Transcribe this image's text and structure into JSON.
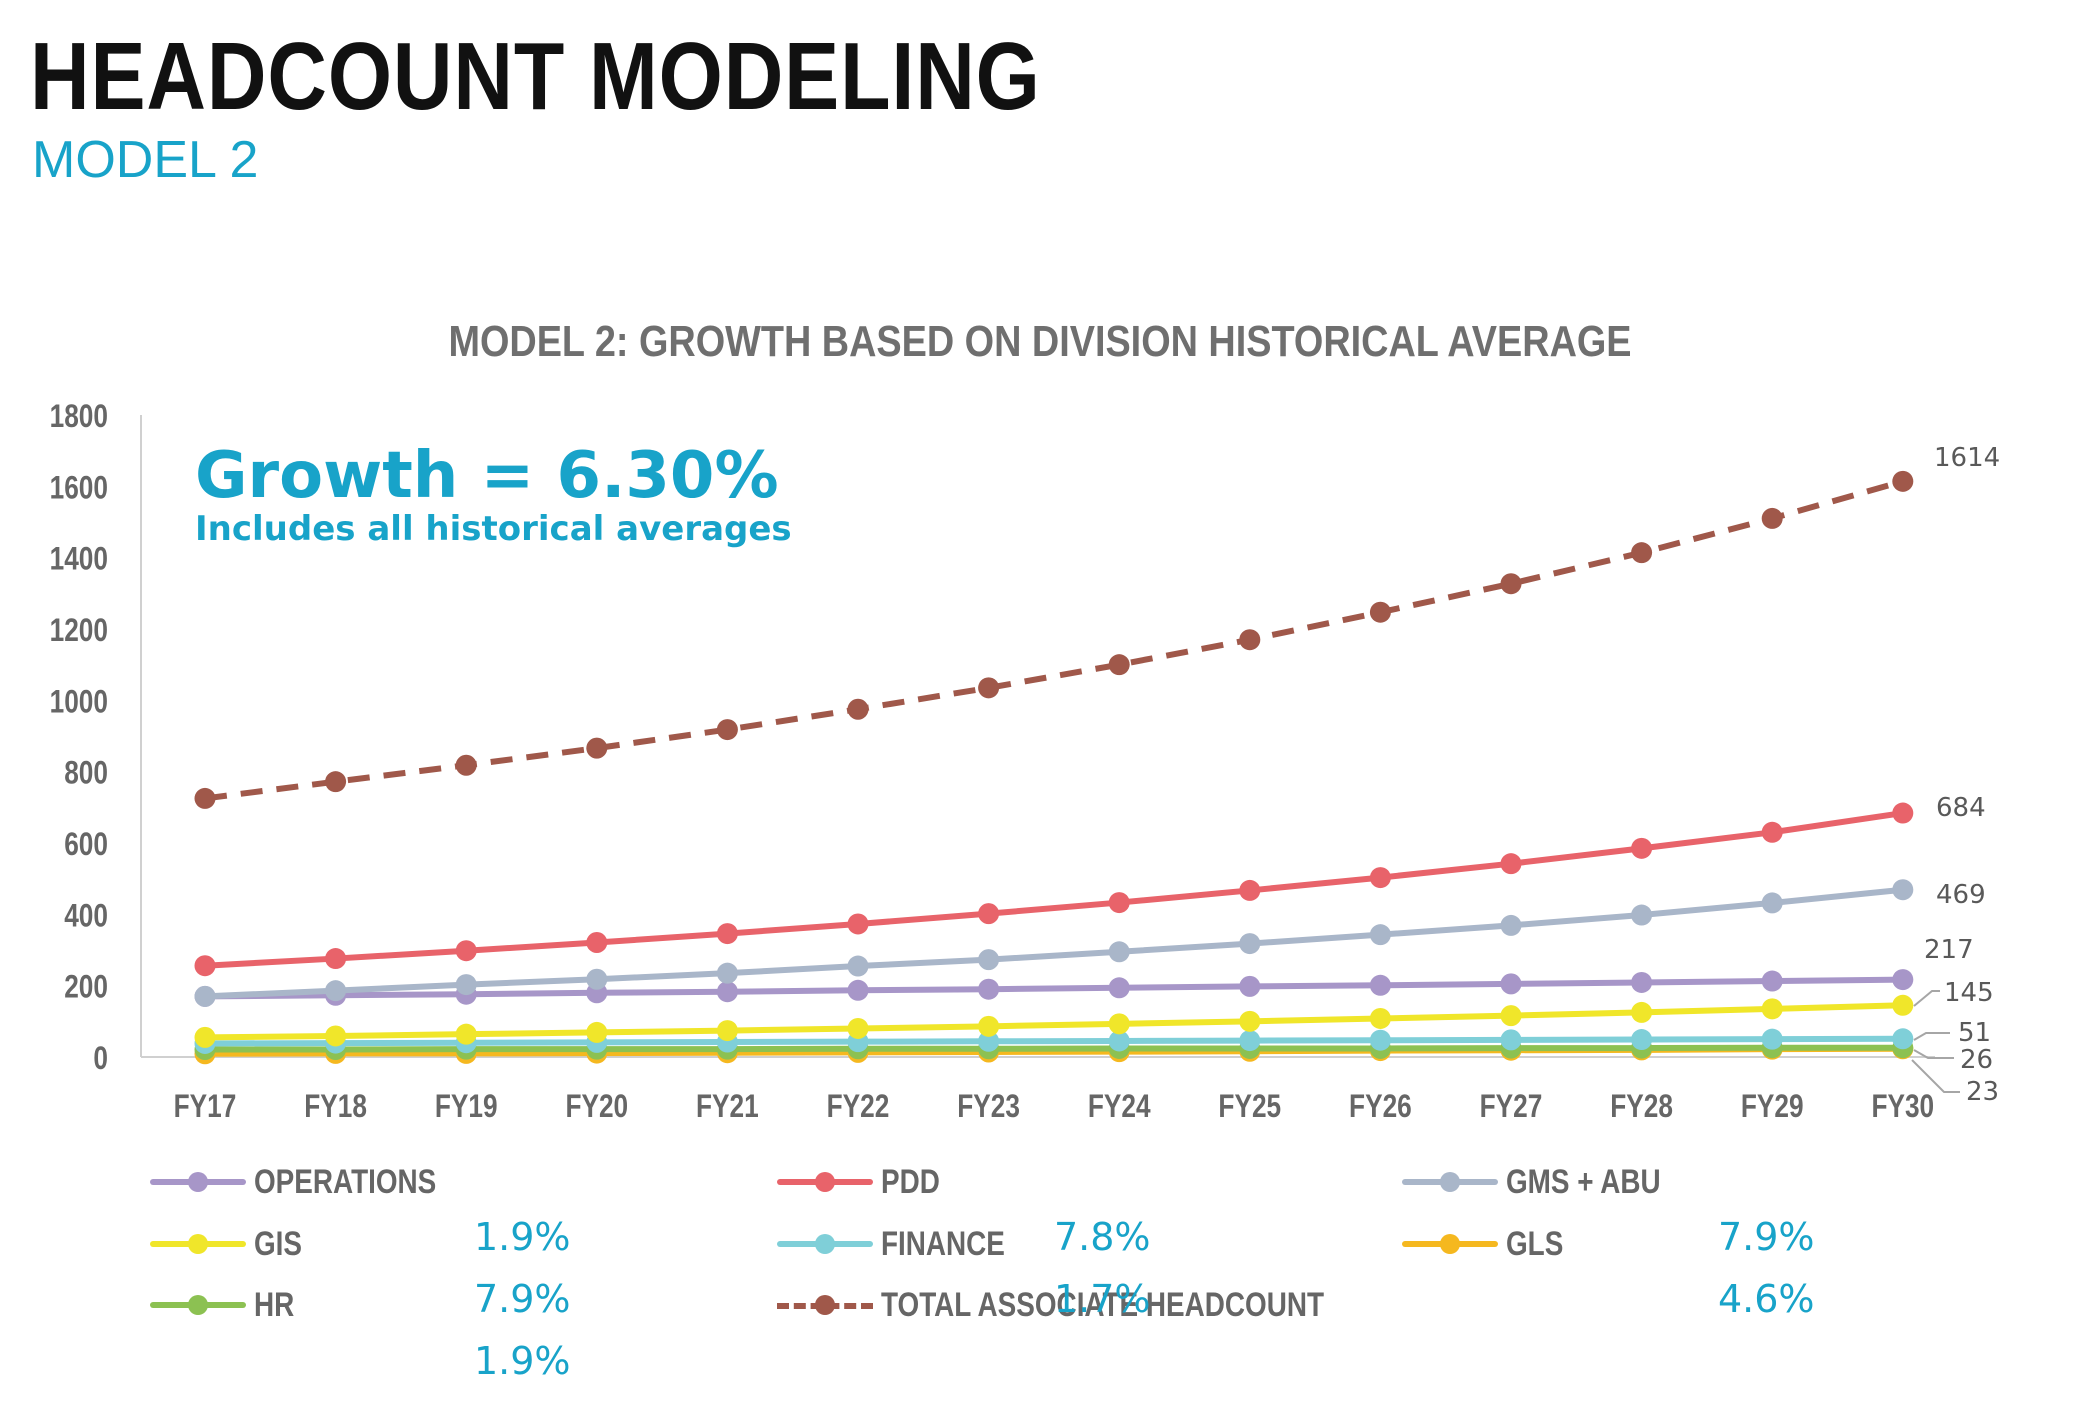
{
  "header": {
    "title": "HEADCOUNT MODELING",
    "subtitle": "MODEL 2"
  },
  "annotation": {
    "headline": "Growth = 6.30%",
    "subline": "Includes all historical averages"
  },
  "legend": [
    {
      "name": "OPERATIONS",
      "color": "#a796c8",
      "dashed": false
    },
    {
      "name": "PDD",
      "color": "#e8636a",
      "dashed": false
    },
    {
      "name": "GMS + ABU",
      "color": "#a9b6c9",
      "dashed": false
    },
    {
      "name": "GIS",
      "color": "#f0e62a",
      "dashed": false
    },
    {
      "name": "FINANCE",
      "color": "#7fcfd8",
      "dashed": false
    },
    {
      "name": "GLS",
      "color": "#f5b81f",
      "dashed": false
    },
    {
      "name": "HR",
      "color": "#8cc152",
      "dashed": false
    },
    {
      "name": "TOTAL ASSOCIATE HEADCOUNT",
      "color": "#a0584a",
      "dashed": true
    }
  ],
  "percentages": [
    "1.9%",
    "7.8%",
    "7.9%",
    "7.9%",
    "1.7%",
    "4.6%",
    "1.9%"
  ],
  "chart_data": {
    "type": "line",
    "title": "MODEL 2:  GROWTH BASED ON DIVISION HISTORICAL AVERAGE",
    "xlabel": "",
    "ylabel": "",
    "ylim": [
      0,
      1800
    ],
    "yticks": [
      0,
      200,
      400,
      600,
      800,
      1000,
      1200,
      1400,
      1600,
      1800
    ],
    "grid": false,
    "categories": [
      "FY17",
      "FY18",
      "FY19",
      "FY20",
      "FY21",
      "FY22",
      "FY23",
      "FY24",
      "FY25",
      "FY26",
      "FY27",
      "FY28",
      "FY29",
      "FY30"
    ],
    "series": [
      {
        "name": "OPERATIONS",
        "color": "#a796c8",
        "dashed": false,
        "values": [
          170,
          173,
          176,
          180,
          183,
          187,
          190,
          194,
          198,
          201,
          205,
          209,
          213,
          217
        ]
      },
      {
        "name": "PDD",
        "color": "#e8636a",
        "dashed": false,
        "values": [
          256,
          276,
          298,
          321,
          346,
          373,
          402,
          433,
          467,
          503,
          542,
          585,
          630,
          684
        ]
      },
      {
        "name": "GMS + ABU",
        "color": "#a9b6c9",
        "dashed": false,
        "values": [
          170,
          186,
          203,
          218,
          235,
          255,
          273,
          295,
          318,
          343,
          369,
          398,
          432,
          469
        ]
      },
      {
        "name": "GIS",
        "color": "#f0e62a",
        "dashed": false,
        "values": [
          55,
          59,
          64,
          69,
          74,
          80,
          86,
          93,
          100,
          108,
          116,
          125,
          135,
          145
        ]
      },
      {
        "name": "FINANCE",
        "color": "#7fcfd8",
        "dashed": false,
        "values": [
          38,
          39,
          40,
          41,
          42,
          43,
          44,
          45,
          46,
          47,
          48,
          49,
          50,
          51
        ]
      },
      {
        "name": "GLS",
        "color": "#f5b81f",
        "dashed": false,
        "values": [
          9,
          10,
          10,
          11,
          12,
          13,
          14,
          15,
          16,
          18,
          19,
          20,
          22,
          23
        ]
      },
      {
        "name": "HR",
        "color": "#8cc152",
        "dashed": false,
        "values": [
          21,
          21,
          22,
          22,
          22,
          23,
          23,
          24,
          24,
          24,
          25,
          25,
          26,
          26
        ]
      },
      {
        "name": "TOTAL ASSOCIATE HEADCOUNT",
        "color": "#a0584a",
        "dashed": true,
        "values": [
          725,
          772,
          818,
          866,
          918,
          975,
          1035,
          1100,
          1170,
          1247,
          1327,
          1414,
          1510,
          1614
        ]
      }
    ],
    "end_labels": [
      {
        "series": "TOTAL ASSOCIATE HEADCOUNT",
        "text": "1614"
      },
      {
        "series": "PDD",
        "text": "684"
      },
      {
        "series": "GMS + ABU",
        "text": "469"
      },
      {
        "series": "OPERATIONS",
        "text": "217"
      },
      {
        "series": "GIS",
        "text": "145"
      },
      {
        "series": "FINANCE",
        "text": "51"
      },
      {
        "series": "HR",
        "text": "26"
      },
      {
        "series": "GLS",
        "text": "23"
      }
    ]
  }
}
